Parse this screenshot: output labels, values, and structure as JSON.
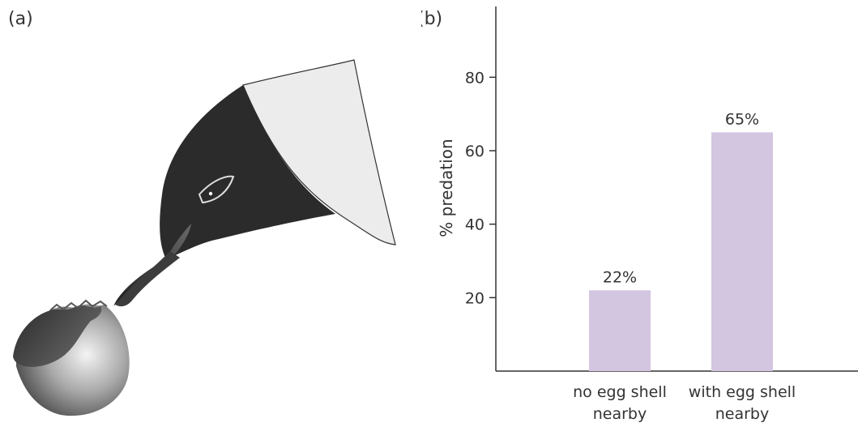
{
  "panel_a": {
    "label": "(a)"
  },
  "panel_b": {
    "label": "(b)"
  },
  "chart_data": {
    "type": "bar",
    "categories": [
      [
        "no egg shell",
        "nearby"
      ],
      [
        "with egg shell",
        "nearby"
      ]
    ],
    "values": [
      22,
      65
    ],
    "data_labels": [
      "22%",
      "65%"
    ],
    "title": "",
    "xlabel": "",
    "ylabel": "% predation",
    "ylim": [
      0,
      100
    ],
    "yticks": [
      20,
      40,
      60,
      80
    ],
    "grid": false,
    "bar_color": "#d3c6e1"
  },
  "colors": {
    "bird_head": "#2b2b2b",
    "bird_white_cap": "#ececec",
    "egg_shell_light": "#e8e8e8",
    "egg_shell_dark": "#3a3a3a",
    "axis": "#333333"
  }
}
